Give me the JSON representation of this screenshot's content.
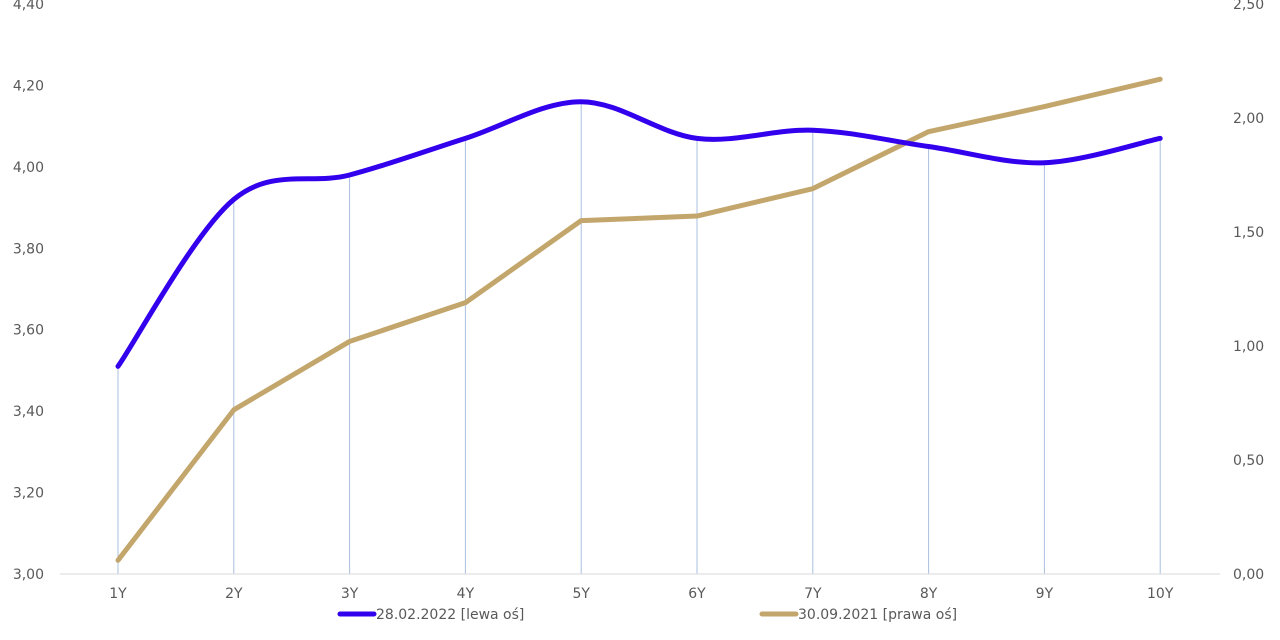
{
  "chart_data": {
    "type": "line",
    "categories": [
      "1Y",
      "2Y",
      "3Y",
      "4Y",
      "5Y",
      "6Y",
      "7Y",
      "8Y",
      "9Y",
      "10Y"
    ],
    "series": [
      {
        "name": "28.02.2022 [lewa oś]",
        "axis": "left",
        "color": "#3300ee",
        "smooth": true,
        "values": [
          3.51,
          3.92,
          3.98,
          4.07,
          4.16,
          4.07,
          4.09,
          4.05,
          4.01,
          4.07
        ]
      },
      {
        "name": "30.09.2021 [prawa oś]",
        "axis": "right",
        "color": "#c3a66b",
        "smooth": false,
        "values": [
          0.06,
          0.72,
          1.02,
          1.19,
          1.55,
          1.57,
          1.69,
          1.94,
          2.05,
          2.17
        ]
      }
    ],
    "left_axis": {
      "ylim": [
        3.0,
        4.4
      ],
      "ticks": [
        "3,00",
        "3,20",
        "3,40",
        "3,60",
        "3,80",
        "4,00",
        "4,20",
        "4,40"
      ]
    },
    "right_axis": {
      "ylim": [
        0.0,
        2.5
      ],
      "ticks": [
        "0,00",
        "0,50",
        "1,00",
        "1,50",
        "2,00",
        "2,50"
      ]
    },
    "vertical_gridlines": true,
    "horizontal_gridlines": false,
    "legend_position": "bottom",
    "gridline_color": "#a9bfdf",
    "axis_color": "#d9d9d9",
    "text_color": "#595959"
  }
}
